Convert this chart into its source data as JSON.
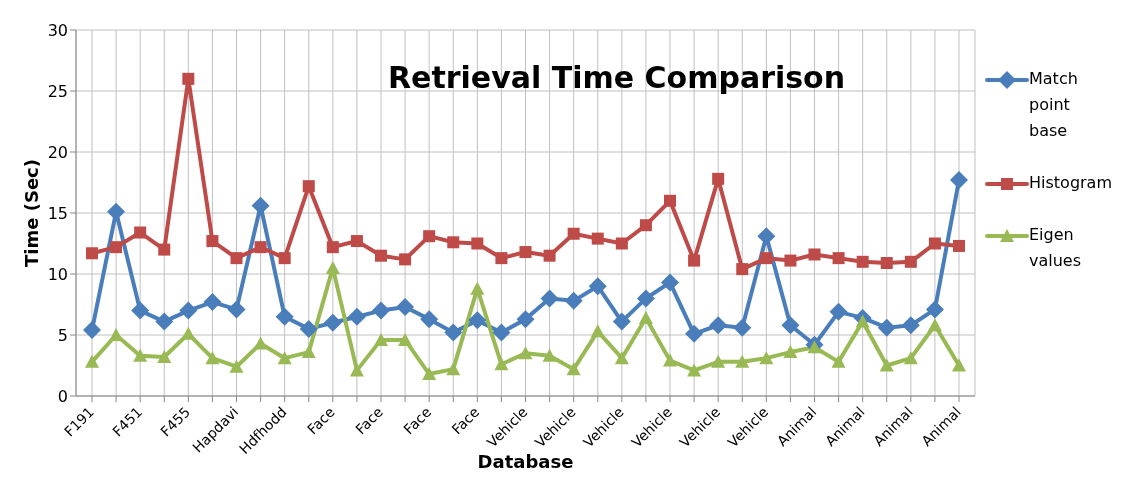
{
  "chart_data": {
    "type": "line",
    "title": "Retrieval Time Comparison",
    "xlabel": "Database",
    "ylabel": "Time (Sec)",
    "categories": [
      "F191",
      null,
      "F451",
      null,
      "F455",
      null,
      "Hapdavi",
      null,
      "Hdfhodd",
      null,
      "Face",
      null,
      "Face",
      null,
      "Face",
      null,
      "Face",
      null,
      "Vehicle",
      null,
      "Vehicle",
      null,
      "Vehicle",
      null,
      "Vehicle",
      null,
      "Vehicle",
      null,
      "Vehicle",
      null,
      "Animal",
      null,
      "Animal",
      null,
      "Animal",
      null,
      "Animal"
    ],
    "series": [
      {
        "name": "Match point base",
        "color": "#4a7ebb",
        "marker": "diamond",
        "values": [
          5.4,
          15.1,
          7.0,
          6.1,
          7.0,
          7.7,
          7.1,
          15.6,
          6.5,
          5.5,
          6.0,
          6.5,
          7.0,
          7.3,
          6.3,
          5.2,
          6.2,
          5.2,
          6.3,
          8.0,
          7.8,
          9.0,
          6.1,
          8.0,
          9.3,
          5.1,
          5.8,
          5.6,
          13.1,
          5.8,
          4.2,
          6.9,
          6.4,
          5.6,
          5.8,
          7.1,
          17.7
        ]
      },
      {
        "name": "Histogram",
        "color": "#be4b48",
        "marker": "square",
        "values": [
          11.7,
          12.2,
          13.4,
          12.0,
          26.0,
          12.7,
          11.3,
          12.2,
          11.3,
          17.2,
          12.2,
          12.7,
          11.5,
          11.2,
          13.1,
          12.6,
          12.5,
          11.3,
          11.8,
          11.5,
          13.3,
          12.9,
          12.5,
          14.0,
          16.0,
          11.1,
          17.8,
          10.4,
          11.3,
          11.1,
          11.6,
          11.3,
          11.0,
          10.9,
          11.0,
          12.5,
          12.3
        ]
      },
      {
        "name": "Eigen values",
        "color": "#98b954",
        "marker": "triangle",
        "values": [
          2.8,
          5.0,
          3.3,
          3.2,
          5.1,
          3.1,
          2.4,
          4.3,
          3.1,
          3.6,
          10.5,
          2.1,
          4.6,
          4.6,
          1.8,
          2.2,
          8.8,
          2.6,
          3.5,
          3.3,
          2.2,
          5.3,
          3.1,
          6.4,
          2.9,
          2.1,
          2.8,
          2.8,
          3.1,
          3.6,
          4.0,
          2.8,
          6.1,
          2.5,
          3.1,
          5.8,
          2.5
        ]
      }
    ],
    "ylim": [
      0,
      30
    ],
    "yticks": [
      0,
      5,
      10,
      15,
      20,
      25,
      30
    ],
    "grid": true,
    "legend": "right",
    "line_style": "solid"
  }
}
